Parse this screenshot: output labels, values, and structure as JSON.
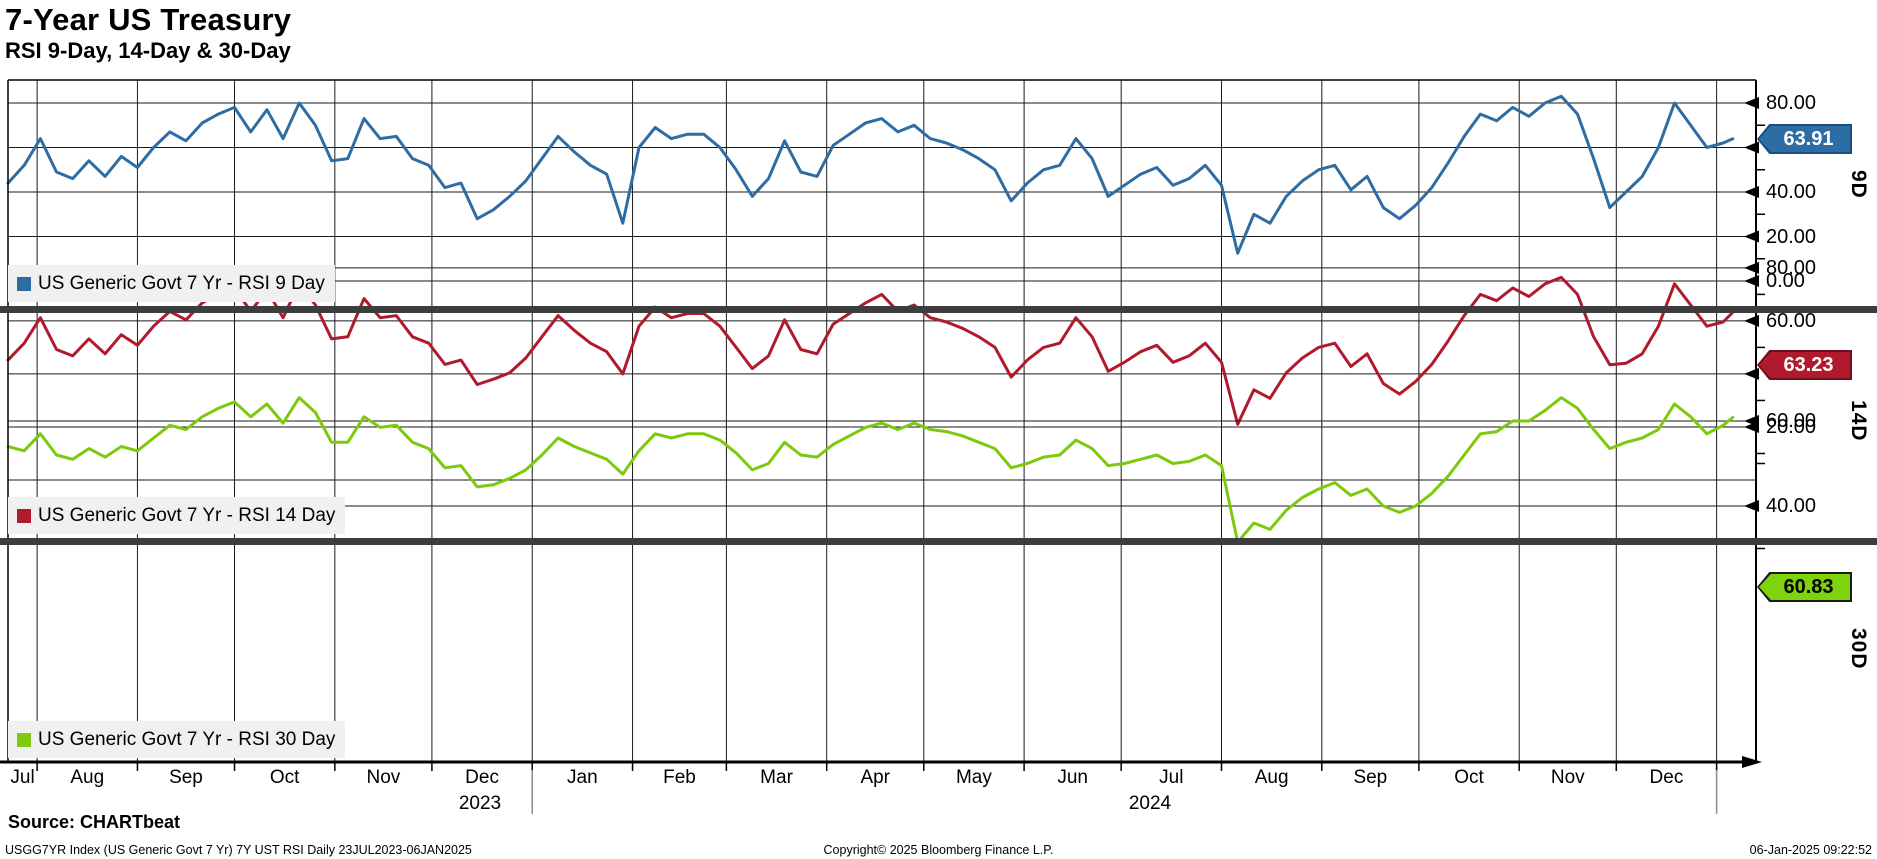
{
  "title": "7-Year US Treasury",
  "subtitle": "RSI 9-Day, 14-Day & 30-Day",
  "source_line": "Source: CHARTbeat",
  "footer": {
    "left": "USGG7YR Index (US Generic Govt 7 Yr) 7Y UST RSI  Daily 23JUL2023-06JAN2025",
    "center": "Copyright© 2025 Bloomberg Finance L.P.",
    "right": "06-Jan-2025 09:22:52"
  },
  "x_axis": {
    "start_date_label": "23JUL2023",
    "end_date_label": "06JAN2025",
    "month_labels": [
      "Jul",
      "Aug",
      "Sep",
      "Oct",
      "Nov",
      "Dec",
      "Jan",
      "Feb",
      "Mar",
      "Apr",
      "May",
      "Jun",
      "Jul",
      "Aug",
      "Sep",
      "Oct",
      "Nov",
      "Dec"
    ],
    "month_mid_days": [
      4.5,
      24.5,
      55,
      85.5,
      116,
      146.5,
      177.5,
      207.5,
      237.5,
      268,
      298.5,
      329,
      359.5,
      390.5,
      421,
      451.5,
      482,
      512.5
    ],
    "month_start_days": [
      9,
      40,
      70,
      101,
      131,
      162,
      193,
      222,
      253,
      283,
      314,
      344,
      375,
      406,
      436,
      467,
      497,
      528
    ],
    "year_separator_days": [
      162,
      528
    ],
    "year_labels": [
      {
        "label": "2023",
        "day": 146
      },
      {
        "label": "2024",
        "day": 353
      }
    ]
  },
  "chart_data": {
    "type": "line",
    "x_note": "day index from 23JUL2023, sampled every 5 days",
    "days": [
      0,
      5,
      10,
      15,
      20,
      25,
      30,
      35,
      40,
      45,
      50,
      55,
      60,
      65,
      70,
      75,
      80,
      85,
      90,
      95,
      100,
      105,
      110,
      115,
      120,
      125,
      130,
      135,
      140,
      145,
      150,
      155,
      160,
      165,
      170,
      175,
      180,
      185,
      190,
      195,
      200,
      205,
      210,
      215,
      220,
      225,
      230,
      235,
      240,
      245,
      250,
      255,
      260,
      265,
      270,
      275,
      280,
      285,
      290,
      295,
      300,
      305,
      310,
      315,
      320,
      325,
      330,
      335,
      340,
      345,
      350,
      355,
      360,
      365,
      370,
      375,
      380,
      385,
      390,
      395,
      400,
      405,
      410,
      415,
      420,
      425,
      430,
      435,
      440,
      445,
      450,
      455,
      460,
      465,
      470,
      475,
      480,
      485,
      490,
      495,
      500,
      505,
      510,
      515,
      520,
      525,
      530,
      533
    ],
    "grid": "monthly vertical gridlines, horizontal gridlines every 20 units",
    "panels": [
      {
        "axis_label": "9D",
        "legend": "US Generic Govt 7 Yr - RSI 9 Day",
        "line_color": "#2e6da4",
        "badge": {
          "label": "63.91",
          "bg": "#2e6da4",
          "border": "#174e82",
          "text_color": "#ffffff",
          "value": 63.91
        },
        "ylim": [
          -11.2,
          90.3
        ],
        "yticks": [
          {
            "v": 80,
            "label": "80.00"
          },
          {
            "v": 60,
            "label": "60.00"
          },
          {
            "v": 40,
            "label": "40.00"
          },
          {
            "v": 20,
            "label": "20.00"
          },
          {
            "v": 0,
            "label": "0.00"
          }
        ],
        "grid_values": [
          0,
          20,
          40,
          60,
          80
        ],
        "minor_ticks": [
          10,
          30,
          50,
          70
        ],
        "values": [
          44,
          52,
          64,
          49,
          46,
          54,
          47,
          56,
          51,
          60,
          67,
          63,
          71,
          75,
          78,
          67,
          77,
          64,
          80,
          70,
          54,
          55,
          73,
          64,
          65,
          55,
          52,
          42,
          44,
          28,
          32,
          38,
          45,
          55,
          65,
          58,
          52,
          48,
          26,
          60,
          69,
          64,
          66,
          66,
          60,
          50,
          38,
          46,
          63,
          49,
          47,
          61,
          66,
          71,
          73,
          67,
          70,
          64,
          62,
          59,
          55,
          50,
          36,
          44,
          50,
          52,
          64,
          55,
          38,
          43,
          48,
          51,
          43,
          46,
          52,
          43,
          12.5,
          30,
          26,
          38,
          45,
          50,
          52,
          41,
          47,
          33,
          28,
          34,
          42,
          53,
          65,
          75,
          72,
          78,
          74,
          80,
          83,
          75,
          55,
          33,
          40,
          47,
          60,
          80,
          70,
          60,
          62,
          63.91
        ]
      },
      {
        "axis_label": "14D",
        "legend": "US Generic Govt 7 Yr - RSI 14 Day",
        "line_color": "#b11a2c",
        "badge": {
          "label": "63.23",
          "bg": "#b11a2c",
          "border": "#6d0f1d",
          "text_color": "#ffffff",
          "value": 63.23
        },
        "ylim": [
          -1.9,
          83.0
        ],
        "yticks": [
          {
            "v": 80,
            "label": "80.00"
          },
          {
            "v": 60,
            "label": "60.00"
          },
          {
            "v": 40,
            "label": "40.00"
          },
          {
            "v": 20,
            "label": "20.00"
          }
        ],
        "grid_values": [
          0,
          20,
          40,
          60,
          80
        ],
        "minor_ticks": [
          10,
          30,
          50,
          70
        ],
        "values": [
          45.2,
          51.6,
          61.2,
          49.2,
          46.8,
          53.2,
          47.6,
          54.8,
          50.8,
          58,
          63.6,
          60.4,
          66.8,
          70,
          72.4,
          63.6,
          71.6,
          61.2,
          74,
          66,
          53.2,
          54,
          68.4,
          61.2,
          62,
          54,
          51.6,
          43.6,
          45.2,
          36,
          38,
          40.4,
          46,
          54,
          62,
          56.4,
          51.6,
          48.4,
          40,
          58,
          65.2,
          61.2,
          62.8,
          62.8,
          58,
          50,
          42,
          46.8,
          60.4,
          49.2,
          47.6,
          58.8,
          62.8,
          66.8,
          70,
          63.6,
          66,
          61.2,
          59.6,
          57.2,
          54,
          50,
          38.8,
          45.2,
          50,
          51.6,
          61.2,
          54,
          41,
          44.4,
          48.4,
          50.8,
          44.4,
          46.8,
          51.6,
          44.4,
          21,
          34,
          30.8,
          40.4,
          46,
          50,
          51.6,
          42.8,
          47.6,
          36.4,
          32.4,
          37.2,
          43.6,
          52.4,
          62,
          70,
          67.6,
          72.4,
          69.2,
          74,
          76.4,
          70,
          54,
          43.5,
          44,
          47.6,
          58,
          74,
          66,
          58,
          59.6,
          63.23
        ]
      },
      {
        "axis_label": "30D",
        "legend": "US Generic Govt 7 Yr - RSI 30 Day",
        "line_color": "#7cc90e",
        "badge": {
          "label": "60.83",
          "bg": "#7fd30c",
          "border": "#1a1a1a",
          "text_color": "#000000",
          "value": 60.83
        },
        "ylim": [
          19.8,
          70.8
        ],
        "yticks": [
          {
            "v": 60,
            "label": "60.00"
          },
          {
            "v": 40,
            "label": "40.00"
          }
        ],
        "grid_values": [
          40,
          60
        ],
        "minor_ticks": [
          30,
          50
        ],
        "values": [
          54,
          53,
          57,
          52,
          51,
          53.5,
          51.5,
          54,
          53,
          56,
          59,
          58,
          61,
          63,
          64.5,
          61,
          64,
          59.5,
          65.5,
          62,
          55,
          55,
          61,
          58.5,
          59,
          55,
          53.5,
          49,
          49.5,
          44.5,
          45,
          46.5,
          48.5,
          52,
          56,
          54,
          52.5,
          51,
          47.5,
          53,
          57,
          56,
          57,
          57,
          55.5,
          52.5,
          48.5,
          50,
          55,
          52,
          51.5,
          54.5,
          56.5,
          58.5,
          59.5,
          58,
          59.5,
          58,
          57.5,
          56.5,
          55,
          53.5,
          49,
          50,
          51.5,
          52,
          55.5,
          53.5,
          49.5,
          50,
          51,
          52,
          50,
          50.5,
          52,
          49.5,
          31.5,
          36,
          34.5,
          39,
          42,
          44,
          45.5,
          42.5,
          44,
          40,
          38.5,
          40,
          43,
          47,
          52,
          57,
          57.5,
          60,
          60,
          62.5,
          65.5,
          63,
          58,
          53.5,
          55,
          56,
          58,
          64,
          61,
          57,
          59,
          60.83
        ]
      }
    ]
  }
}
